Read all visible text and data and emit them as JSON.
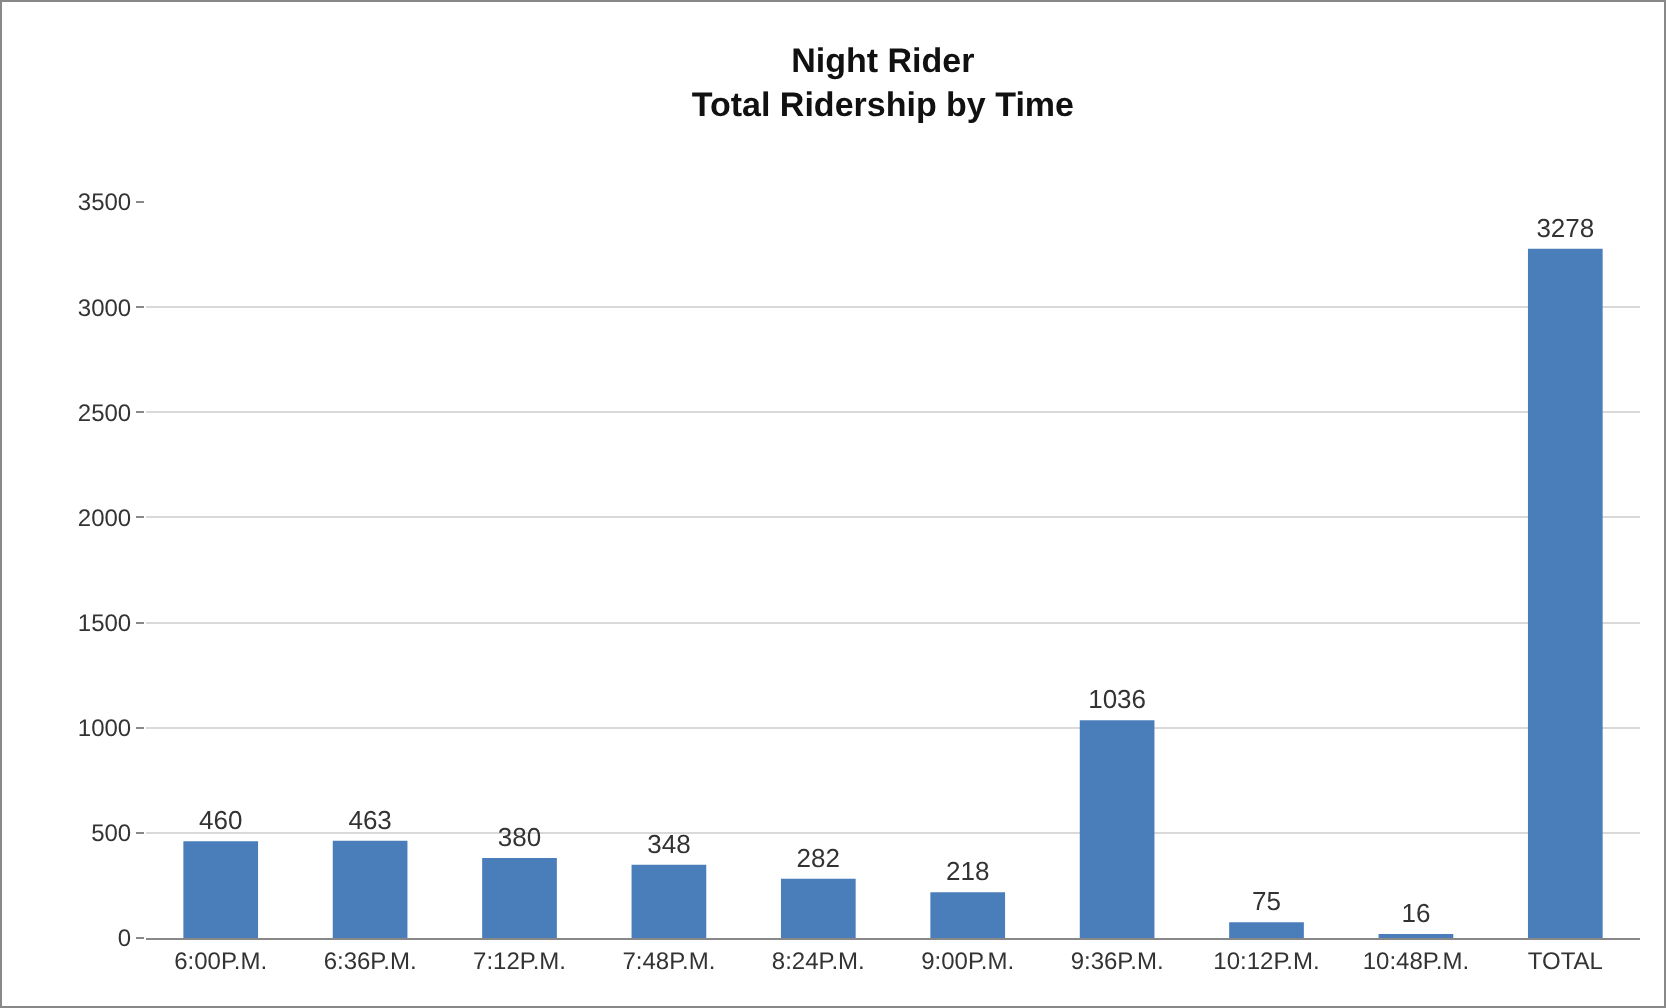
{
  "chart_data": {
    "type": "bar",
    "title": "Night Rider\nTotal Ridership by Time",
    "categories": [
      "6:00P.M.",
      "6:36P.M.",
      "7:12P.M.",
      "7:48P.M.",
      "8:24P.M.",
      "9:00P.M.",
      "9:36P.M.",
      "10:12P.M.",
      "10:48P.M.",
      "TOTAL"
    ],
    "values": [
      460,
      463,
      380,
      348,
      282,
      218,
      1036,
      75,
      16,
      3278
    ],
    "color": "#4a7ebb",
    "ylim": [
      0,
      3500
    ],
    "yticks": [
      0,
      500,
      1000,
      1500,
      2000,
      2500,
      3000,
      3500
    ],
    "grid": "y",
    "data_labels": true
  }
}
